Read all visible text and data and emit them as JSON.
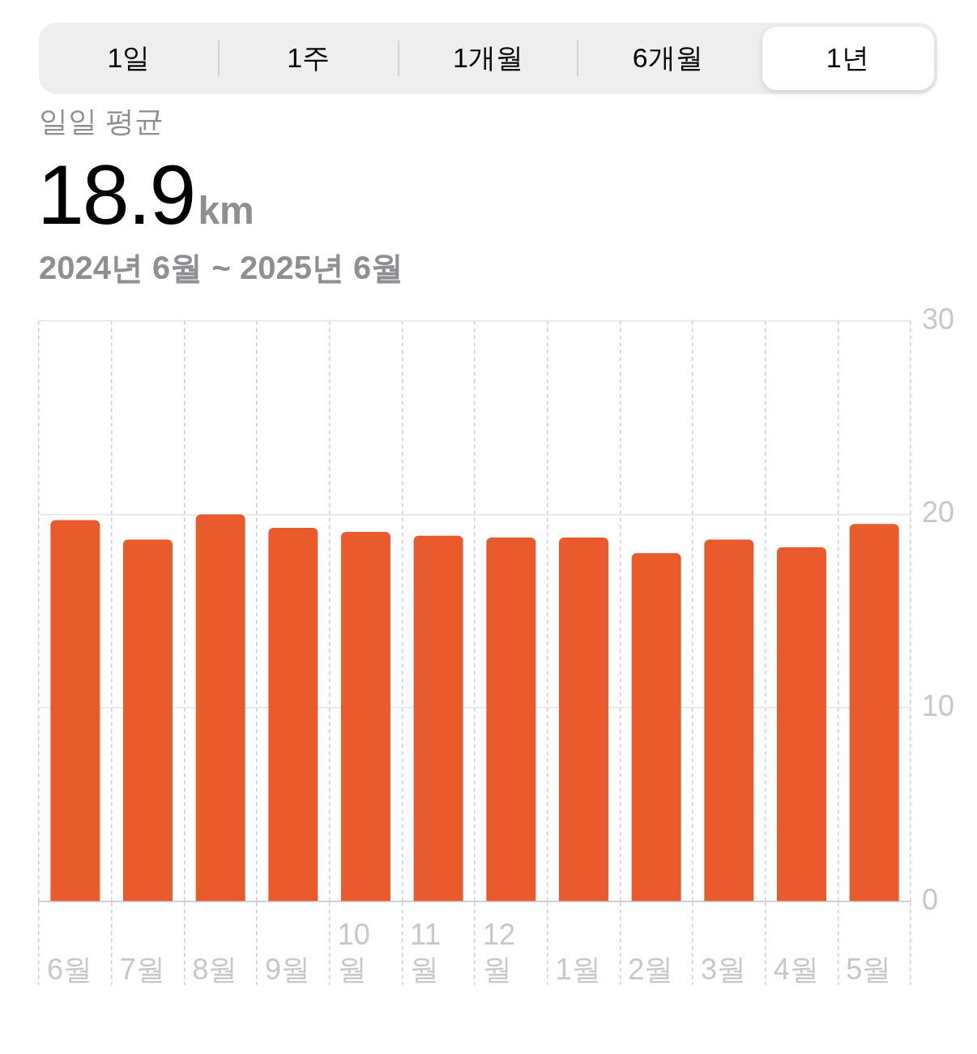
{
  "chart_data": {
    "type": "bar",
    "title": "일일 평균",
    "subtitle": "2024년 6월 ~ 2025년 6월",
    "annotations": [
      "1일",
      "1주",
      "1개월",
      "6개월",
      "1년",
      "18.9",
      "km"
    ],
    "categories": [
      "6월",
      "7월",
      "8월",
      "9월",
      "10월",
      "11월",
      "12월",
      "1월",
      "2월",
      "3월",
      "4월",
      "5월"
    ],
    "values": [
      19.7,
      18.7,
      20.0,
      19.3,
      19.1,
      18.9,
      18.8,
      18.8,
      18.0,
      18.7,
      18.3,
      19.5
    ],
    "color": "#e95a2c",
    "ylim": [
      0,
      30
    ],
    "yticks": [
      0,
      10,
      20,
      30
    ],
    "grid": true
  }
}
